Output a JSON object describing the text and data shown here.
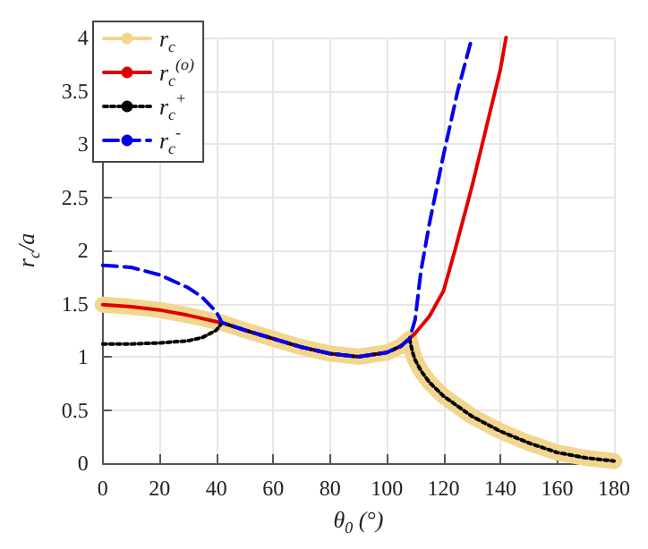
{
  "chart_data": {
    "type": "line",
    "xlabel": "θ$_{0}$ (°)",
    "ylabel": "r$_{c}$/a",
    "xlim": [
      0,
      180
    ],
    "xticks": [
      0,
      20,
      40,
      60,
      80,
      100,
      120,
      140,
      160,
      180
    ],
    "ylim": [
      0,
      4
    ],
    "yticks": [
      0,
      0.5,
      1,
      1.5,
      2,
      2.5,
      3,
      3.5,
      4
    ],
    "grid": true,
    "legend": "top left",
    "marker": "none",
    "series": [
      {
        "name": "r$_{c}$",
        "color": "#f2d68e",
        "line_style": "solid",
        "x": [
          0,
          10,
          20,
          30,
          40,
          42,
          50,
          60,
          70,
          80,
          90,
          100,
          105,
          108,
          109,
          110,
          112,
          115,
          120,
          130,
          140,
          150,
          160,
          170,
          180
        ],
        "values": [
          1.49,
          1.47,
          1.44,
          1.39,
          1.33,
          1.32,
          1.25,
          1.17,
          1.09,
          1.03,
          1.0,
          1.04,
          1.1,
          1.17,
          1.05,
          0.97,
          0.87,
          0.76,
          0.63,
          0.44,
          0.3,
          0.19,
          0.1,
          0.05,
          0.02
        ]
      },
      {
        "name": "r$_{c}$$^{(o)}$",
        "color": "#e00000",
        "line_style": "solid",
        "x": [
          0,
          10,
          20,
          30,
          40,
          42,
          50,
          60,
          70,
          80,
          90,
          100,
          105,
          108,
          110,
          115,
          120,
          124,
          130,
          135,
          140,
          142
        ],
        "values": [
          1.49,
          1.47,
          1.44,
          1.39,
          1.33,
          1.32,
          1.25,
          1.17,
          1.09,
          1.03,
          1.0,
          1.04,
          1.1,
          1.17,
          1.22,
          1.38,
          1.62,
          2.0,
          2.6,
          3.15,
          3.7,
          4.0
        ]
      },
      {
        "name": "r$_{c}$$^{+}$",
        "color": "#000000",
        "line_style": "dotted",
        "x": [
          0,
          10,
          20,
          30,
          35,
          40,
          42,
          50,
          60,
          70,
          80,
          90,
          100,
          105,
          108,
          109,
          110,
          112,
          115,
          120,
          130,
          140,
          150,
          160,
          170,
          180
        ],
        "values": [
          1.12,
          1.12,
          1.13,
          1.15,
          1.18,
          1.25,
          1.32,
          1.25,
          1.17,
          1.09,
          1.03,
          1.0,
          1.04,
          1.1,
          1.17,
          1.05,
          0.97,
          0.87,
          0.76,
          0.63,
          0.44,
          0.3,
          0.19,
          0.1,
          0.05,
          0.02
        ]
      },
      {
        "name": "r$_{c}$$^{-}$",
        "color": "#0000ee",
        "line_style": "dashed",
        "x": [
          0,
          10,
          20,
          30,
          35,
          40,
          42,
          50,
          60,
          70,
          80,
          90,
          100,
          105,
          108,
          110,
          112,
          115,
          120,
          125,
          130
        ],
        "values": [
          1.86,
          1.84,
          1.77,
          1.65,
          1.56,
          1.42,
          1.32,
          1.25,
          1.17,
          1.09,
          1.03,
          1.0,
          1.04,
          1.1,
          1.17,
          1.35,
          1.8,
          2.25,
          2.9,
          3.5,
          4.0
        ]
      }
    ]
  }
}
